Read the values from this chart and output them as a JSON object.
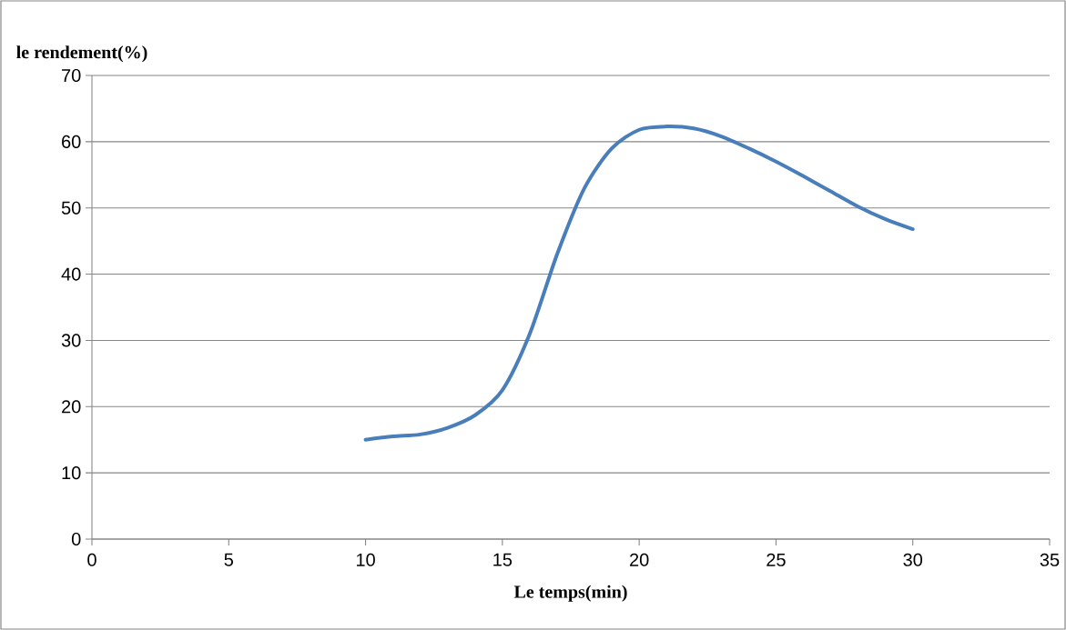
{
  "chart_data": {
    "type": "line",
    "xlabel": "Le temps(min)",
    "ylabel": "le rendement(%)",
    "x": [
      10,
      11,
      12,
      13,
      14,
      15,
      16,
      17,
      18,
      19,
      20,
      21,
      22,
      23,
      24,
      25,
      26,
      27,
      28,
      29,
      30
    ],
    "series": [
      {
        "color": "#4a7ebb",
        "values": [
          15,
          15.5,
          15.8,
          16.8,
          18.7,
          22.5,
          31,
          43,
          53,
          59,
          61.8,
          62.3,
          62,
          60.8,
          59,
          57,
          54.8,
          52.5,
          50.2,
          48.3,
          46.8
        ]
      }
    ],
    "xlim": [
      0,
      35
    ],
    "xticks": [
      0,
      5,
      10,
      15,
      20,
      25,
      30,
      35
    ],
    "ylim": [
      0,
      70
    ],
    "yticks": [
      0,
      10,
      20,
      30,
      40,
      50,
      60,
      70
    ],
    "grid": "y",
    "marker": "none",
    "line_style": "solid"
  }
}
